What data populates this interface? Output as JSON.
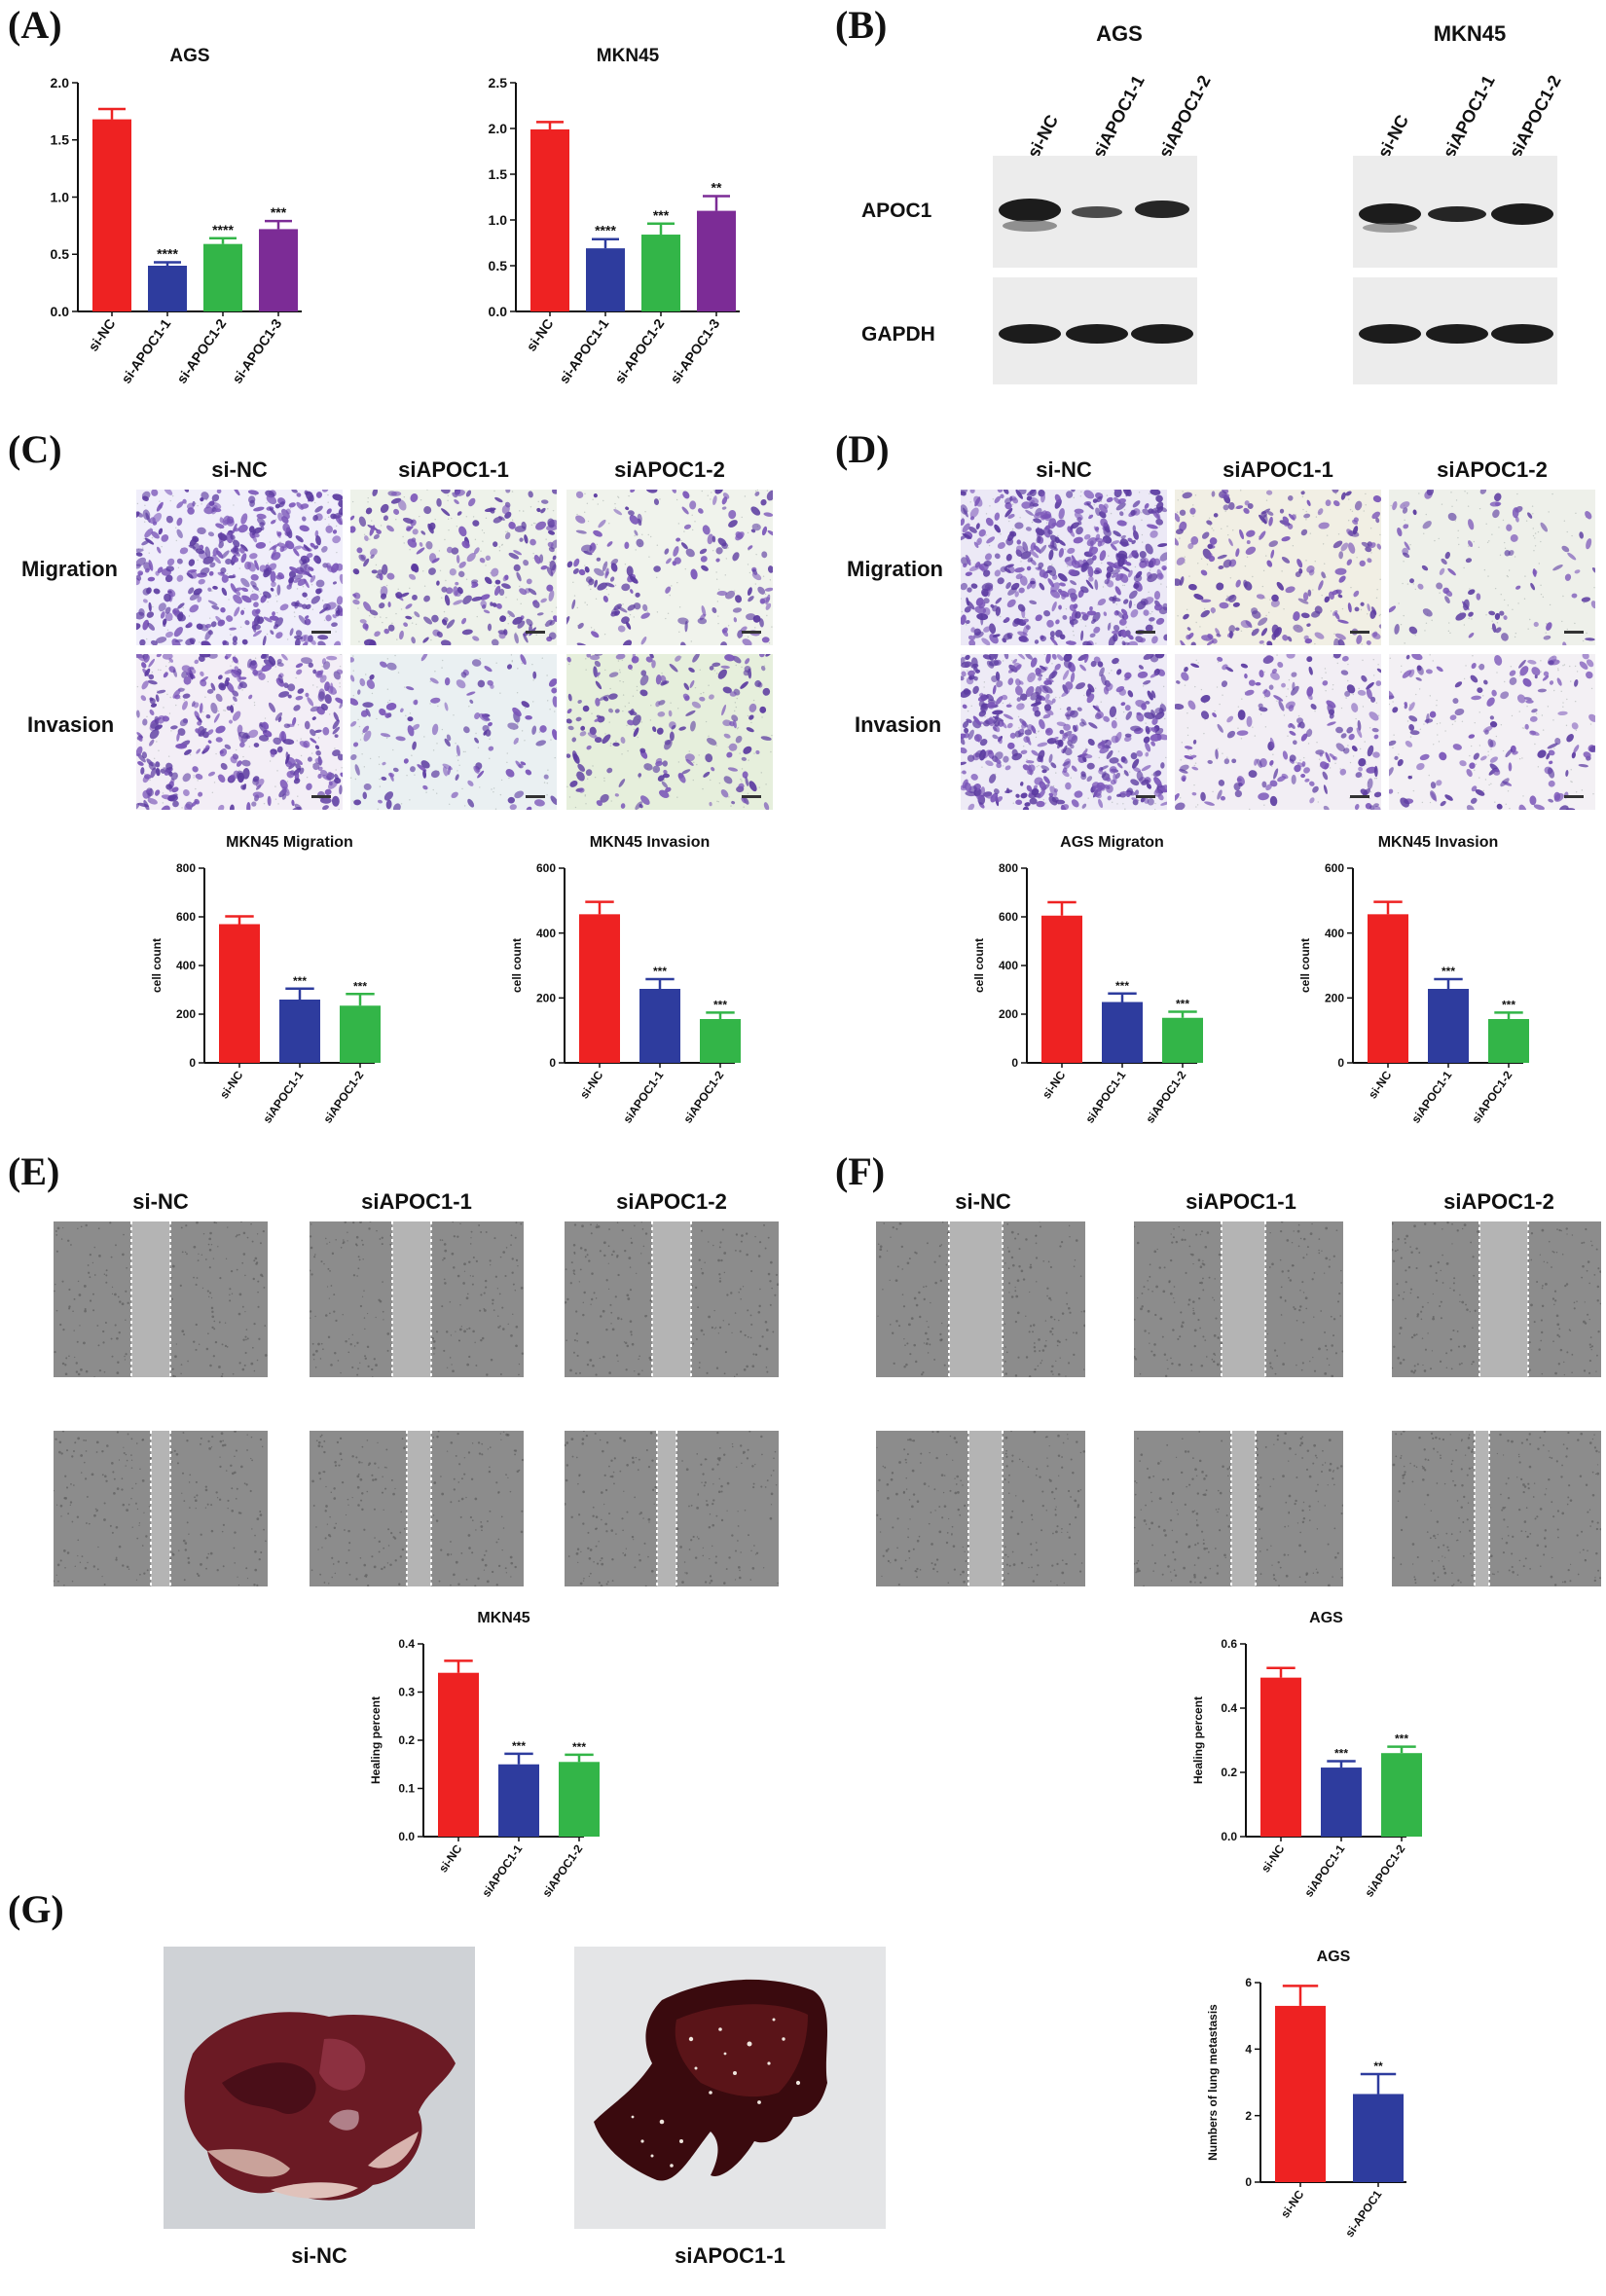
{
  "labels": {
    "a": "(A)",
    "b": "(B)",
    "c": "(C)",
    "d": "(D)",
    "e": "(E)",
    "f": "(F)",
    "g": "(G)"
  },
  "colors": {
    "red": "#ee2222",
    "blue": "#2e3c9e",
    "green": "#33b548",
    "purple": "#7c2c96",
    "crystal": "#6b47b0",
    "scratch": "#8a8a8a"
  },
  "panel_b": {
    "cells": [
      "AGS",
      "MKN45"
    ],
    "lanes": [
      "si-NC",
      "siAPOC1-1",
      "siAPOC1-2"
    ],
    "rows": [
      "APOC1",
      "GAPDH"
    ]
  },
  "panel_c": {
    "columns": [
      "si-NC",
      "siAPOC1-1",
      "siAPOC1-2"
    ],
    "rows": [
      "Migration",
      "Invasion"
    ]
  },
  "panel_d": {
    "columns": [
      "si-NC",
      "siAPOC1-1",
      "siAPOC1-2"
    ],
    "rows": [
      "Migration",
      "Invasion"
    ]
  },
  "panel_e": {
    "columns": [
      "si-NC",
      "siAPOC1-1",
      "siAPOC1-2"
    ]
  },
  "panel_f": {
    "columns": [
      "si-NC",
      "siAPOC1-1",
      "siAPOC1-2"
    ]
  },
  "panel_g": {
    "captions": [
      "si-NC",
      "siAPOC1-1"
    ]
  },
  "chart_data": [
    {
      "id": "a1",
      "type": "bar",
      "title": "AGS",
      "ylabel": "",
      "ylim": [
        0,
        2.0
      ],
      "yticks": [
        "0.0",
        "0.5",
        "1.0",
        "1.5",
        "2.0"
      ],
      "tickvals": [
        0,
        0.5,
        1.0,
        1.5,
        2.0
      ],
      "categories": [
        "si-NC",
        "si-APOC1-1",
        "si-APOC1-2",
        "si-APOC1-3"
      ],
      "values": [
        1.68,
        0.4,
        0.59,
        0.72
      ],
      "errors": [
        0.09,
        0.03,
        0.05,
        0.07
      ],
      "sig": [
        "",
        "****",
        "****",
        "***"
      ],
      "colors": [
        "#ee2222",
        "#2e3c9e",
        "#33b548",
        "#7c2c96"
      ]
    },
    {
      "id": "a2",
      "type": "bar",
      "title": "MKN45",
      "ylabel": "",
      "ylim": [
        0,
        2.5
      ],
      "yticks": [
        "0.0",
        "0.5",
        "1.0",
        "1.5",
        "2.0",
        "2.5"
      ],
      "tickvals": [
        0,
        0.5,
        1.0,
        1.5,
        2.0,
        2.5
      ],
      "categories": [
        "si-NC",
        "si-APOC1-1",
        "si-APOC1-2",
        "si-APOC1-3"
      ],
      "values": [
        1.99,
        0.69,
        0.84,
        1.1
      ],
      "errors": [
        0.08,
        0.1,
        0.12,
        0.16
      ],
      "sig": [
        "",
        "****",
        "***",
        "**"
      ],
      "colors": [
        "#ee2222",
        "#2e3c9e",
        "#33b548",
        "#7c2c96"
      ]
    },
    {
      "id": "c1",
      "type": "bar",
      "title": "MKN45  Migration",
      "ylabel": "cell count",
      "ylim": [
        0,
        800
      ],
      "yticks": [
        "0",
        "200",
        "400",
        "600",
        "800"
      ],
      "tickvals": [
        0,
        200,
        400,
        600,
        800
      ],
      "categories": [
        "si-NC",
        "siAPOC1-1",
        "siAPOC1-2"
      ],
      "values": [
        570,
        260,
        235
      ],
      "errors": [
        32,
        45,
        48
      ],
      "sig": [
        "",
        "***",
        "***"
      ],
      "colors": [
        "#ee2222",
        "#2e3c9e",
        "#33b548"
      ]
    },
    {
      "id": "c2",
      "type": "bar",
      "title": "MKN45  Invasion",
      "ylabel": "cell count",
      "ylim": [
        0,
        600
      ],
      "yticks": [
        "0",
        "200",
        "400",
        "600"
      ],
      "tickvals": [
        0,
        200,
        400,
        600
      ],
      "categories": [
        "si-NC",
        "siAPOC1-1",
        "siAPOC1-2"
      ],
      "values": [
        458,
        228,
        135
      ],
      "errors": [
        38,
        30,
        20
      ],
      "sig": [
        "",
        "***",
        "***"
      ],
      "colors": [
        "#ee2222",
        "#2e3c9e",
        "#33b548"
      ]
    },
    {
      "id": "d1",
      "type": "bar",
      "title": "AGS Migraton",
      "ylabel": "cell count",
      "ylim": [
        0,
        800
      ],
      "yticks": [
        "0",
        "200",
        "400",
        "600",
        "800"
      ],
      "tickvals": [
        0,
        200,
        400,
        600,
        800
      ],
      "categories": [
        "si-NC",
        "siAPOC1-1",
        "siAPOC1-2"
      ],
      "values": [
        605,
        250,
        185
      ],
      "errors": [
        55,
        35,
        25
      ],
      "sig": [
        "",
        "***",
        "***"
      ],
      "colors": [
        "#ee2222",
        "#2e3c9e",
        "#33b548"
      ]
    },
    {
      "id": "d2",
      "type": "bar",
      "title": "MKN45  Invasion",
      "ylabel": "cell count",
      "ylim": [
        0,
        600
      ],
      "yticks": [
        "0",
        "200",
        "400",
        "600"
      ],
      "tickvals": [
        0,
        200,
        400,
        600
      ],
      "categories": [
        "si-NC",
        "siAPOC1-1",
        "siAPOC1-2"
      ],
      "values": [
        458,
        228,
        135
      ],
      "errors": [
        38,
        30,
        20
      ],
      "sig": [
        "",
        "***",
        "***"
      ],
      "colors": [
        "#ee2222",
        "#2e3c9e",
        "#33b548"
      ]
    },
    {
      "id": "e1",
      "type": "bar",
      "title": "MKN45",
      "ylabel": "Healing percent",
      "ylim": [
        0,
        0.4
      ],
      "yticks": [
        "0.0",
        "0.1",
        "0.2",
        "0.3",
        "0.4"
      ],
      "tickvals": [
        0,
        0.1,
        0.2,
        0.3,
        0.4
      ],
      "categories": [
        "si-NC",
        "siAPOC1-1",
        "siAPOC1-2"
      ],
      "values": [
        0.34,
        0.15,
        0.155
      ],
      "errors": [
        0.025,
        0.022,
        0.015
      ],
      "sig": [
        "",
        "***",
        "***"
      ],
      "colors": [
        "#ee2222",
        "#2e3c9e",
        "#33b548"
      ]
    },
    {
      "id": "f1",
      "type": "bar",
      "title": "AGS",
      "ylabel": "Healing percent",
      "ylim": [
        0,
        0.6
      ],
      "yticks": [
        "0.0",
        "0.2",
        "0.4",
        "0.6"
      ],
      "tickvals": [
        0,
        0.2,
        0.4,
        0.6
      ],
      "categories": [
        "si-NC",
        "siAPOC1-1",
        "siAPOC1-2"
      ],
      "values": [
        0.495,
        0.215,
        0.26
      ],
      "errors": [
        0.03,
        0.02,
        0.02
      ],
      "sig": [
        "",
        "***",
        "***"
      ],
      "colors": [
        "#ee2222",
        "#2e3c9e",
        "#33b548"
      ]
    },
    {
      "id": "g1",
      "type": "bar",
      "title": "AGS",
      "ylabel": "Numbers of lung metastasis",
      "ylim": [
        0,
        6
      ],
      "yticks": [
        "0",
        "2",
        "4",
        "6"
      ],
      "tickvals": [
        0,
        2,
        4,
        6
      ],
      "categories": [
        "si-NC",
        "si-APOC1"
      ],
      "values": [
        5.3,
        2.65
      ],
      "errors": [
        0.6,
        0.6
      ],
      "sig": [
        "",
        "**"
      ],
      "colors": [
        "#ee2222",
        "#2e3c9e"
      ]
    }
  ]
}
